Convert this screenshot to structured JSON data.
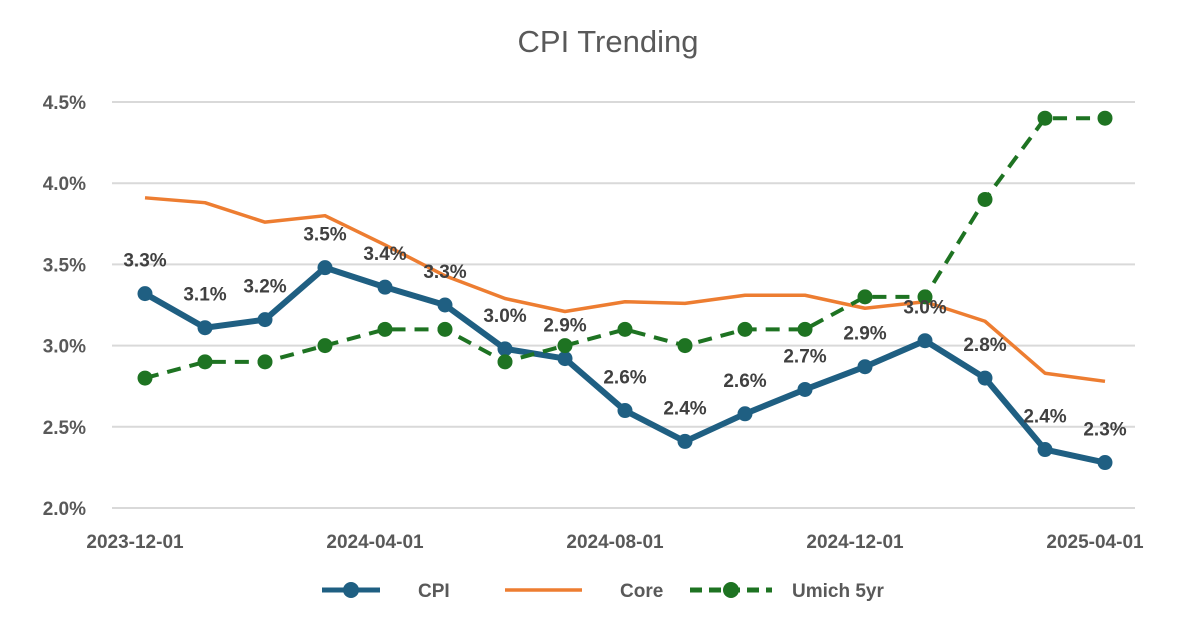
{
  "chart_data": {
    "type": "line",
    "title": "CPI Trending",
    "xlabel": "",
    "ylabel": "",
    "x": [
      "2023-12-01",
      "2024-01-01",
      "2024-02-01",
      "2024-03-01",
      "2024-04-01",
      "2024-05-01",
      "2024-06-01",
      "2024-07-01",
      "2024-08-01",
      "2024-09-01",
      "2024-10-01",
      "2024-11-01",
      "2024-12-01",
      "2025-01-01",
      "2025-02-01",
      "2025-03-01",
      "2025-04-01"
    ],
    "x_tick_labels": [
      "2023-12-01",
      "2024-04-01",
      "2024-08-01",
      "2024-12-01",
      "2025-04-01"
    ],
    "y_tick_labels": [
      "2.0%",
      "2.5%",
      "3.0%",
      "3.5%",
      "4.0%",
      "4.5%"
    ],
    "ylim": [
      2.0,
      4.5
    ],
    "grid": "horizontal",
    "legend_position": "bottom",
    "series": [
      {
        "name": "CPI",
        "color": "#1F5F82",
        "style": "solid-markers",
        "values": [
          3.32,
          3.11,
          3.16,
          3.48,
          3.36,
          3.25,
          2.98,
          2.92,
          2.6,
          2.41,
          2.58,
          2.73,
          2.87,
          3.03,
          2.8,
          2.36,
          2.28
        ],
        "data_labels": [
          "3.3%",
          "3.1%",
          "3.2%",
          "3.5%",
          "3.4%",
          "3.3%",
          "3.0%",
          "2.9%",
          "2.6%",
          "2.4%",
          "2.6%",
          "2.7%",
          "2.9%",
          "3.0%",
          "2.8%",
          "2.4%",
          "2.3%"
        ]
      },
      {
        "name": "Core",
        "color": "#ED7D31",
        "style": "solid",
        "values": [
          3.91,
          3.88,
          3.76,
          3.8,
          3.62,
          3.43,
          3.29,
          3.21,
          3.27,
          3.26,
          3.31,
          3.31,
          3.23,
          3.27,
          3.15,
          2.83,
          2.78
        ]
      },
      {
        "name": "Umich 5yr",
        "color": "#1E7322",
        "style": "dashed-markers",
        "values": [
          2.8,
          2.9,
          2.9,
          3.0,
          3.1,
          3.1,
          2.9,
          3.0,
          3.1,
          3.0,
          3.1,
          3.1,
          3.3,
          3.3,
          3.9,
          4.4,
          4.4
        ]
      }
    ]
  }
}
